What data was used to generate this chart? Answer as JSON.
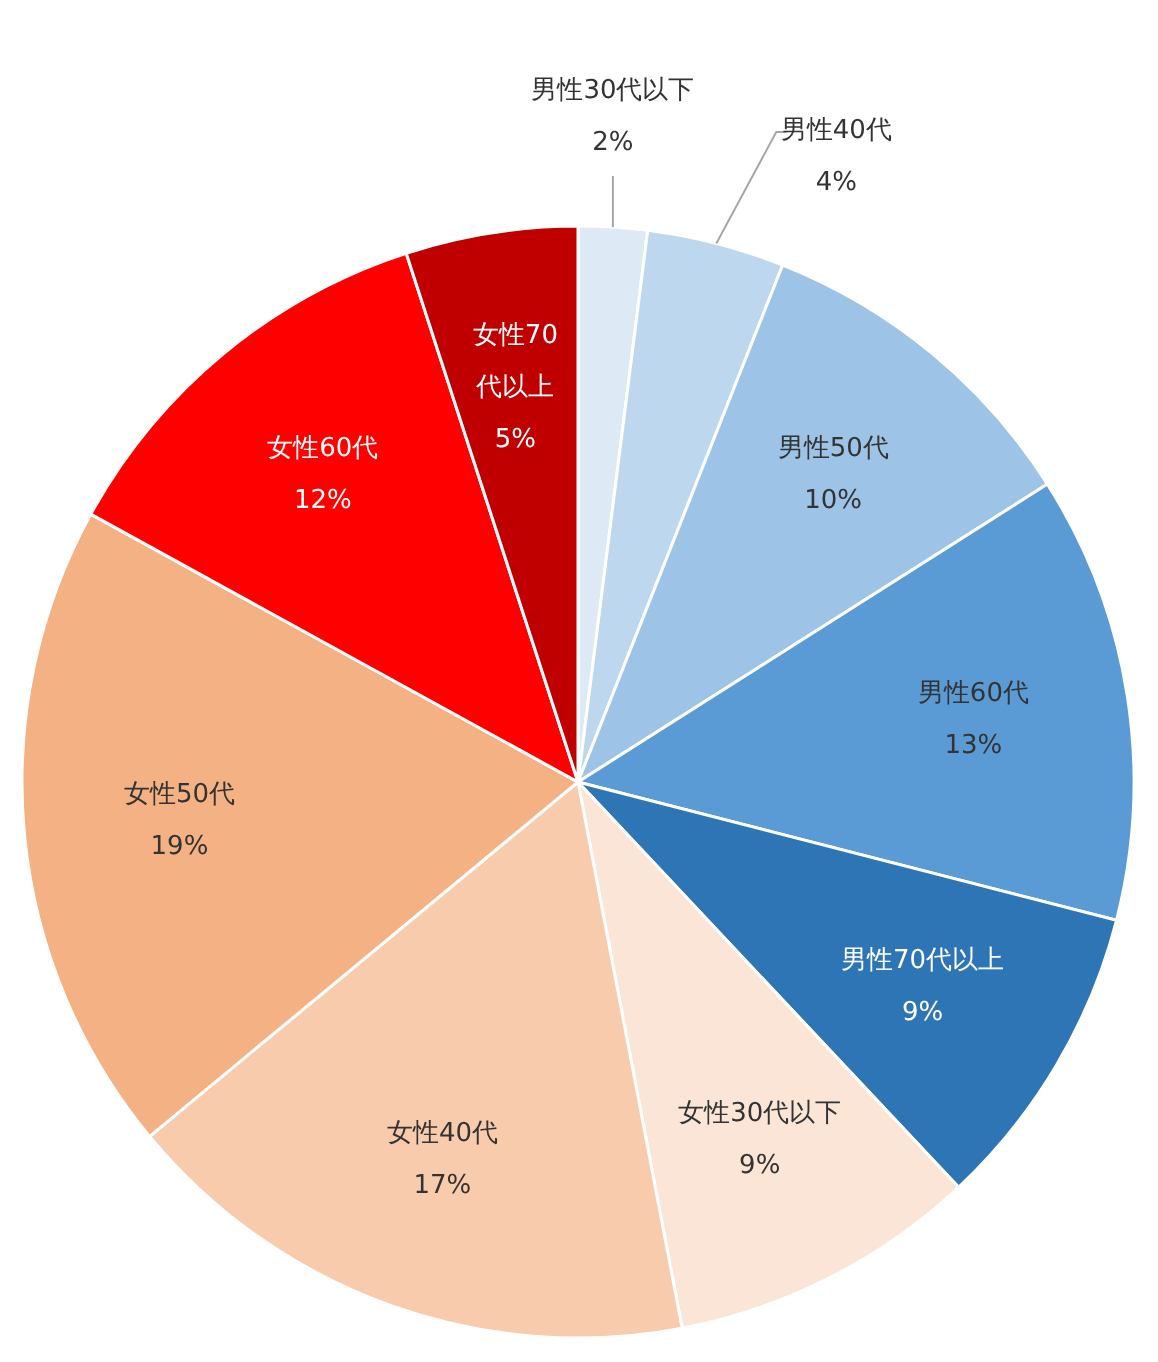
{
  "chart_data": {
    "type": "pie",
    "categories": [
      "男性30代以下",
      "男性40代",
      "男性50代",
      "男性60代",
      "男性70代以上",
      "女性30代以下",
      "女性40代",
      "女性50代",
      "女性60代",
      "女性70代以上"
    ],
    "values": [
      2,
      4,
      10,
      13,
      9,
      9,
      17,
      19,
      12,
      5
    ],
    "colors": [
      "#dde9f5",
      "#bdd7ee",
      "#9dc3e6",
      "#5b9bd5",
      "#2e75b6",
      "#fbe5d6",
      "#f8cbad",
      "#f4b183",
      "#ff0000",
      "#c00000"
    ],
    "value_labels": [
      "2%",
      "4%",
      "10%",
      "13%",
      "9%",
      "9%",
      "17%",
      "19%",
      "12%",
      "5%"
    ]
  }
}
